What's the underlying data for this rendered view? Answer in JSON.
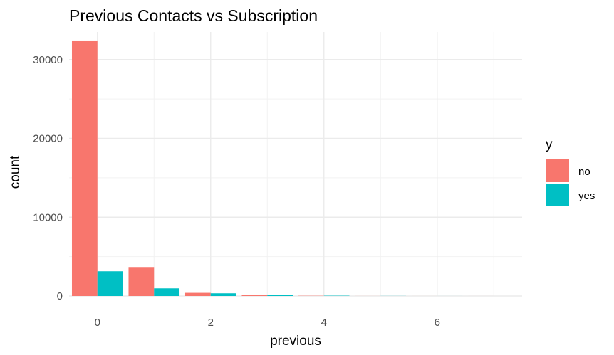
{
  "chart_data": {
    "type": "bar",
    "title": "Previous Contacts vs Subscription",
    "xlabel": "previous",
    "ylabel": "count",
    "x": [
      0,
      1,
      2,
      3,
      4,
      5,
      6,
      7
    ],
    "xlim": [
      -0.5,
      7.5
    ],
    "ylim": [
      0,
      33500
    ],
    "x_ticks": [
      0,
      2,
      4,
      6
    ],
    "y_ticks": [
      0,
      10000,
      20000,
      30000
    ],
    "x_tick_labels": [
      "0",
      "2",
      "4",
      "6"
    ],
    "y_tick_labels": [
      "0",
      "10000",
      "20000",
      "30000"
    ],
    "grid": true,
    "legend": {
      "title": "y",
      "position": "right",
      "entries": [
        {
          "label": "no",
          "color": "#F8766D"
        },
        {
          "label": "yes",
          "color": "#00BFC4"
        }
      ]
    },
    "series": [
      {
        "name": "no",
        "color": "#F8766D",
        "values": [
          32420,
          3590,
          400,
          90,
          30,
          5,
          2,
          1
        ]
      },
      {
        "name": "yes",
        "color": "#00BFC4",
        "values": [
          3140,
          970,
          340,
          120,
          40,
          10,
          2,
          0
        ]
      }
    ]
  }
}
